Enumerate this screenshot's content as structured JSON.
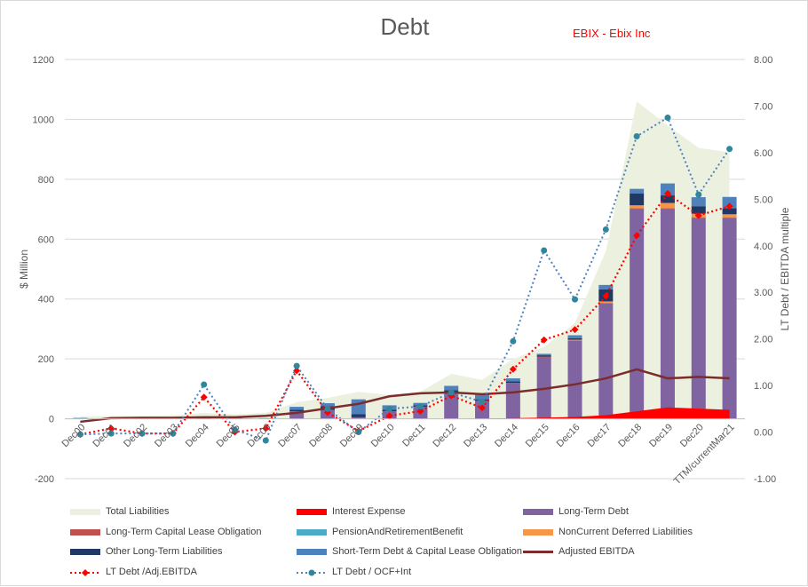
{
  "chart_data": {
    "type": "bar",
    "title": "Debt",
    "subtitle": "EBIX - Ebix Inc",
    "ylabel": "$ Million",
    "y2label": "LT Debt / EBITDA multiple",
    "ylim": [
      -200,
      1200
    ],
    "y2lim": [
      -1.0,
      8.0
    ],
    "yticks": [
      "-200",
      "0",
      "200",
      "400",
      "600",
      "800",
      "1000",
      "1200"
    ],
    "y2ticks": [
      "-1.00",
      "0.00",
      "1.00",
      "2.00",
      "3.00",
      "4.00",
      "5.00",
      "6.00",
      "7.00",
      "8.00"
    ],
    "categories": [
      "Dec00",
      "Dec01",
      "Dec02",
      "Dec03",
      "Dec04",
      "Dec05",
      "Dec06",
      "Dec07",
      "Dec08",
      "Dec09",
      "Dec10",
      "Dec11",
      "Dec12",
      "Dec13",
      "Dec14",
      "Dec15",
      "Dec16",
      "Dec17",
      "Dec18",
      "Dec19",
      "Dec20",
      "TTM/currentMar21"
    ],
    "category_labels": [
      "Dec00",
      "Dec01",
      "Dec02",
      "Dec03",
      "Dec04",
      "Dec05",
      "Dec06",
      "Dec07",
      "Dec08",
      "Dec09",
      "Dec10",
      "Dec11",
      "Dec12",
      "Dec13",
      "Dec14",
      "Dec15",
      "Dec16",
      "Dec17",
      "Dec18",
      "Dec19",
      "Dec20",
      "TTM/currentMar21"
    ],
    "legend_position": "bottom",
    "area": {
      "name": "Total Liabilities",
      "color": "#ebf1de",
      "values": [
        8,
        10,
        10,
        12,
        20,
        15,
        20,
        55,
        70,
        90,
        80,
        90,
        150,
        130,
        200,
        240,
        320,
        560,
        1060,
        980,
        905,
        890
      ]
    },
    "bar_series": [
      {
        "name": "Interest Expense",
        "color": "#ff0000",
        "values": [
          0,
          0,
          0,
          0,
          0,
          0,
          0,
          0,
          0,
          0,
          0,
          0,
          0,
          1,
          2,
          4,
          6,
          12,
          25,
          38,
          34,
          30
        ]
      },
      {
        "name": "Long-Term Debt",
        "color": "#8064a2",
        "values": [
          0,
          0,
          0,
          0,
          0,
          0,
          0,
          25,
          30,
          5,
          25,
          40,
          90,
          60,
          120,
          205,
          260,
          385,
          700,
          700,
          670,
          670
        ]
      },
      {
        "name": "Long-Term Capital Lease Obligation",
        "color": "#c0504d",
        "values": [
          0,
          0,
          0,
          0,
          0,
          0,
          0,
          0,
          0,
          0,
          0,
          0,
          0,
          0,
          0,
          2,
          2,
          2,
          3,
          3,
          3,
          3
        ]
      },
      {
        "name": "PensionAndRetirementBenefit",
        "color": "#4bacc6",
        "values": [
          0,
          0,
          0,
          0,
          0,
          0,
          0,
          0,
          0,
          0,
          0,
          0,
          0,
          0,
          0,
          0,
          0,
          0,
          0,
          0,
          0,
          0
        ]
      },
      {
        "name": "NonCurrent Deferred Liabilities",
        "color": "#f79646",
        "values": [
          0,
          0,
          0,
          0,
          0,
          0,
          0,
          0,
          0,
          0,
          0,
          0,
          0,
          0,
          0,
          0,
          2,
          5,
          10,
          18,
          12,
          10
        ]
      },
      {
        "name": "Other Long-Term Liabilities",
        "color": "#1f3864",
        "values": [
          0,
          0,
          0,
          0,
          3,
          0,
          0,
          5,
          12,
          10,
          5,
          5,
          5,
          5,
          5,
          5,
          5,
          40,
          40,
          25,
          25,
          20
        ]
      },
      {
        "name": "Short-Term Debt & Capital Lease Obligation",
        "color": "#4f81bd",
        "values": [
          3,
          0,
          0,
          0,
          5,
          5,
          2,
          10,
          10,
          50,
          15,
          8,
          15,
          15,
          10,
          5,
          10,
          15,
          15,
          40,
          30,
          38
        ]
      }
    ],
    "line_series": [
      {
        "name": "Adjusted EBITDA",
        "axis": "left",
        "color": "#7b2c2c",
        "values": [
          -10,
          2,
          3,
          3,
          5,
          5,
          10,
          20,
          35,
          50,
          75,
          85,
          88,
          82,
          88,
          100,
          115,
          135,
          165,
          135,
          140,
          135
        ]
      },
      {
        "name": "LT Debt /Adj.EBITDA",
        "axis": "right",
        "color": "#ff0000",
        "values": [
          -0.05,
          0.08,
          -0.03,
          -0.03,
          0.75,
          0.0,
          0.08,
          1.32,
          0.42,
          0.02,
          0.35,
          0.45,
          0.78,
          0.52,
          1.35,
          1.98,
          2.2,
          2.92,
          4.22,
          5.12,
          4.65,
          4.85
        ]
      },
      {
        "name": "LT Debt / OCF+Int",
        "axis": "right",
        "color": "#31859c",
        "values": [
          -0.05,
          -0.03,
          -0.03,
          -0.03,
          1.02,
          0.05,
          -0.18,
          1.42,
          0.5,
          0.0,
          0.5,
          0.55,
          0.85,
          0.65,
          1.95,
          3.9,
          2.85,
          4.35,
          6.35,
          6.75,
          5.1,
          6.08
        ]
      }
    ]
  },
  "legend": [
    {
      "label": "Total Liabilities",
      "kind": "area",
      "color": "#ebf1de"
    },
    {
      "label": "Interest Expense",
      "kind": "box",
      "color": "#ff0000"
    },
    {
      "label": "Long-Term Debt",
      "kind": "box",
      "color": "#8064a2"
    },
    {
      "label": "Long-Term Capital Lease Obligation",
      "kind": "box",
      "color": "#c0504d"
    },
    {
      "label": "PensionAndRetirementBenefit",
      "kind": "box",
      "color": "#4bacc6"
    },
    {
      "label": "NonCurrent Deferred Liabilities",
      "kind": "box",
      "color": "#f79646"
    },
    {
      "label": "Other Long-Term Liabilities",
      "kind": "box",
      "color": "#1f3864"
    },
    {
      "label": "Short-Term Debt & Capital Lease Obligation",
      "kind": "box",
      "color": "#4f81bd"
    },
    {
      "label": "Adjusted EBITDA",
      "kind": "line",
      "color": "#7b2c2c"
    },
    {
      "label": "LT Debt /Adj.EBITDA",
      "kind": "dotline-diamond",
      "color": "#ff0000"
    },
    {
      "label": "LT Debt / OCF+Int",
      "kind": "dotline-circle",
      "color": "#31859c"
    }
  ]
}
